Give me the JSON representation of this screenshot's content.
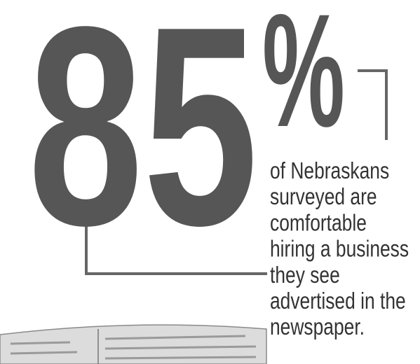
{
  "headline": {
    "number": "85",
    "percent": "%"
  },
  "caption": {
    "lines": [
      "of Nebraskans",
      "surveyed are",
      "comfortable",
      "hiring a business",
      "they see",
      "advertised in the",
      "newspaper."
    ]
  }
}
